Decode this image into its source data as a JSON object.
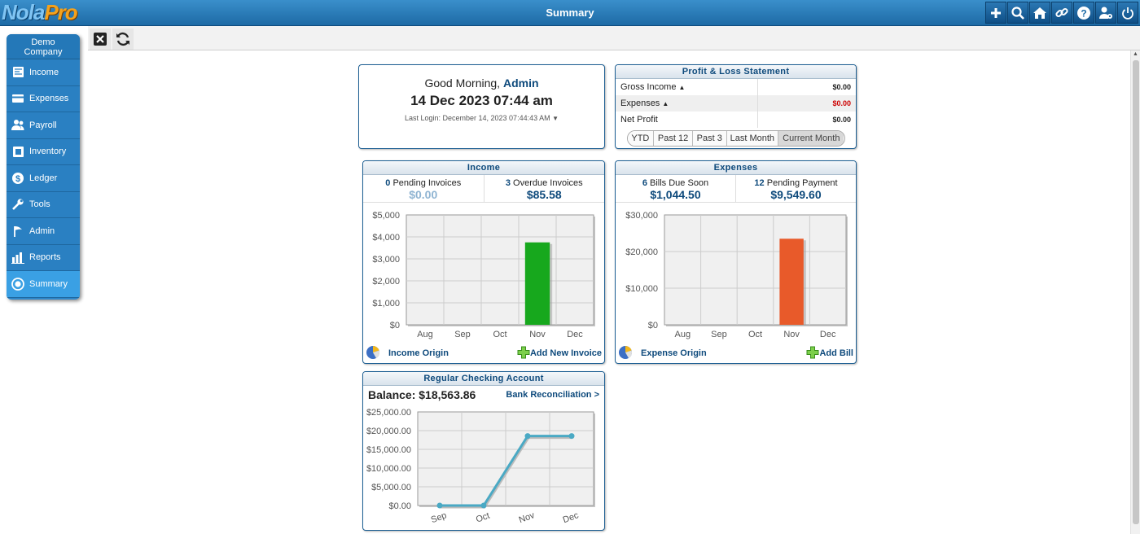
{
  "header": {
    "logo_part1": "Nola",
    "logo_part2": "Pro",
    "title": "Summary",
    "icons": [
      "plus-icon",
      "search-icon",
      "home-icon",
      "link-icon",
      "help-icon",
      "user-settings-icon",
      "power-icon"
    ]
  },
  "sidebar": {
    "company_line1": "Demo",
    "company_line2": "Company",
    "items": [
      {
        "label": "Income",
        "icon": "income-icon"
      },
      {
        "label": "Expenses",
        "icon": "expenses-icon"
      },
      {
        "label": "Payroll",
        "icon": "payroll-icon"
      },
      {
        "label": "Inventory",
        "icon": "inventory-icon"
      },
      {
        "label": "Ledger",
        "icon": "ledger-icon"
      },
      {
        "label": "Tools",
        "icon": "tools-icon"
      },
      {
        "label": "Admin",
        "icon": "admin-icon"
      },
      {
        "label": "Reports",
        "icon": "reports-icon"
      },
      {
        "label": "Summary",
        "icon": "summary-icon"
      }
    ]
  },
  "greeting": {
    "prefix": "Good Morning,",
    "user": "Admin",
    "datetime": "14 Dec 2023 07:44 am",
    "last_login": "Last Login: December 14, 2023 07:44:43 AM"
  },
  "pl": {
    "title": "Profit & Loss Statement",
    "rows": [
      {
        "label": "Gross Income",
        "value": "$0.00",
        "color": "#000000"
      },
      {
        "label": "Expenses",
        "value": "$0.00",
        "color": "#cc0000"
      },
      {
        "label": "Net Profit",
        "value": "$0.00",
        "color": "#000000"
      }
    ],
    "periods": [
      "YTD",
      "Past 12",
      "Past 3",
      "Last Month",
      "Current Month"
    ]
  },
  "income": {
    "title": "Income",
    "pending_count": "0",
    "pending_label": "Pending Invoices",
    "pending_amount": "$0.00",
    "overdue_count": "3",
    "overdue_label": "Overdue Invoices",
    "overdue_amount": "$85.58",
    "footer_left": "Income Origin",
    "footer_right": "Add New Invoice"
  },
  "expenses": {
    "title": "Expenses",
    "due_count": "6",
    "due_label": "Bills Due Soon",
    "due_amount": "$1,044.50",
    "pending_count": "12",
    "pending_label": "Pending Payment",
    "pending_amount": "$9,549.60",
    "footer_left": "Expense Origin",
    "footer_right": "Add Bill"
  },
  "bank": {
    "title": "Regular Checking Account",
    "balance": "Balance: $18,563.86",
    "reconcile": "Bank Reconciliation >"
  },
  "chart_data": [
    {
      "type": "bar",
      "title": "Income",
      "categories": [
        "Aug",
        "Sep",
        "Oct",
        "Nov",
        "Dec"
      ],
      "values": [
        0,
        0,
        0,
        3750,
        0
      ],
      "ylim": [
        0,
        5000
      ],
      "yticks": [
        "$0",
        "$1,000",
        "$2,000",
        "$3,000",
        "$4,000",
        "$5,000"
      ],
      "color": "#17a81d"
    },
    {
      "type": "bar",
      "title": "Expenses",
      "categories": [
        "Aug",
        "Sep",
        "Oct",
        "Nov",
        "Dec"
      ],
      "values": [
        0,
        0,
        0,
        23500,
        0
      ],
      "ylim": [
        0,
        30000
      ],
      "yticks": [
        "$0",
        "$10,000",
        "$20,000",
        "$30,000"
      ],
      "color": "#e85a2a"
    },
    {
      "type": "line",
      "title": "Regular Checking Account",
      "categories": [
        "Sep",
        "Oct",
        "Nov",
        "Dec"
      ],
      "values": [
        0,
        0,
        18563.86,
        18563.86
      ],
      "ylim": [
        0,
        25000
      ],
      "yticks": [
        "$0.00",
        "$5,000.00",
        "$10,000.00",
        "$15,000.00",
        "$20,000.00",
        "$25,000.00"
      ],
      "color": "#4aa9c4"
    }
  ]
}
